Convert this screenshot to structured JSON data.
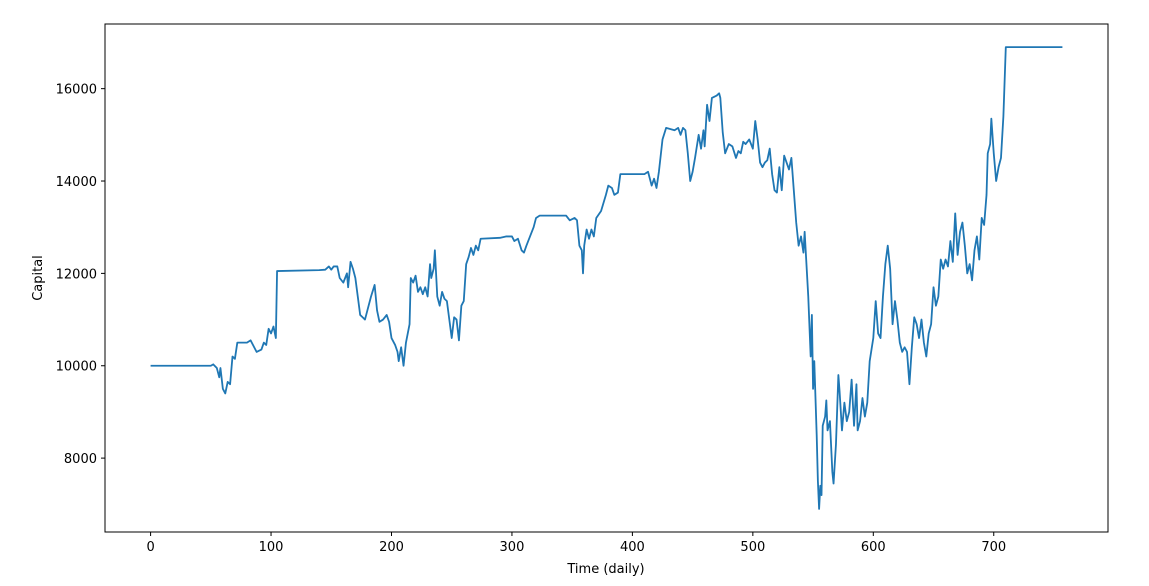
{
  "chart_data": {
    "type": "line",
    "xlabel": "Time (daily)",
    "ylabel": "Capital",
    "color": "#1f77b4",
    "xlim": [
      -37.85,
      794.85
    ],
    "ylim": [
      6400,
      17400
    ],
    "xticks": [
      0,
      100,
      200,
      300,
      400,
      500,
      600,
      700
    ],
    "yticks": [
      8000,
      10000,
      12000,
      14000,
      16000
    ],
    "x": [
      0,
      50,
      52,
      55,
      57,
      58,
      60,
      62,
      64,
      66,
      68,
      70,
      72,
      80,
      83,
      86,
      88,
      92,
      94,
      96,
      98,
      100,
      102,
      104,
      105,
      140,
      145,
      148,
      150,
      152,
      155,
      157,
      160,
      163,
      164,
      166,
      168,
      170,
      172,
      174,
      176,
      178,
      180,
      183,
      186,
      188,
      190,
      193,
      196,
      198,
      200,
      203,
      205,
      206,
      208,
      210,
      212,
      215,
      216,
      218,
      220,
      222,
      224,
      226,
      228,
      230,
      232,
      233,
      235,
      236,
      238,
      240,
      242,
      244,
      246,
      248,
      250,
      252,
      254,
      256,
      258,
      260,
      262,
      264,
      266,
      268,
      270,
      272,
      274,
      290,
      295,
      300,
      302,
      305,
      308,
      310,
      312,
      315,
      318,
      320,
      323,
      345,
      348,
      352,
      354,
      356,
      358,
      359,
      360,
      362,
      364,
      366,
      368,
      370,
      374,
      378,
      380,
      383,
      385,
      388,
      390,
      405,
      410,
      413,
      416,
      418,
      420,
      422,
      425,
      428,
      435,
      438,
      440,
      442,
      444,
      446,
      448,
      450,
      452,
      455,
      457,
      459,
      460,
      462,
      464,
      466,
      470,
      472,
      473,
      475,
      477,
      480,
      483,
      486,
      488,
      490,
      492,
      494,
      497,
      500,
      502,
      504,
      506,
      508,
      510,
      512,
      514,
      516,
      518,
      520,
      522,
      524,
      526,
      528,
      530,
      532,
      534,
      536,
      538,
      540,
      542,
      543,
      546,
      548,
      549,
      550,
      551,
      553,
      554,
      555,
      556,
      557,
      558,
      560,
      561,
      562,
      564,
      566,
      567,
      569,
      571,
      572,
      574,
      576,
      578,
      580,
      582,
      584,
      586,
      587,
      589,
      591,
      593,
      595,
      597,
      600,
      602,
      604,
      606,
      608,
      610,
      612,
      614,
      616,
      618,
      620,
      622,
      624,
      626,
      628,
      630,
      632,
      634,
      636,
      638,
      640,
      642,
      644,
      646,
      648,
      650,
      652,
      654,
      656,
      658,
      660,
      662,
      664,
      666,
      668,
      670,
      672,
      674,
      676,
      678,
      680,
      682,
      684,
      686,
      688,
      690,
      692,
      694,
      695,
      697,
      698,
      700,
      702,
      704,
      706,
      708,
      710,
      757
    ],
    "values": [
      10000,
      10000,
      10030,
      9950,
      9750,
      9950,
      9500,
      9400,
      9650,
      9600,
      10200,
      10150,
      10500,
      10500,
      10550,
      10400,
      10300,
      10350,
      10500,
      10450,
      10800,
      10700,
      10850,
      10600,
      12050,
      12070,
      12080,
      12150,
      12080,
      12150,
      12150,
      11900,
      11800,
      12000,
      11700,
      12250,
      12100,
      11900,
      11500,
      11100,
      11050,
      11000,
      11200,
      11500,
      11750,
      11200,
      10950,
      11000,
      11100,
      10950,
      10600,
      10450,
      10300,
      10100,
      10400,
      10000,
      10500,
      10900,
      11900,
      11800,
      11950,
      11600,
      11700,
      11550,
      11700,
      11500,
      12200,
      11900,
      12100,
      12500,
      11500,
      11300,
      11600,
      11450,
      11400,
      11000,
      10600,
      11050,
      11000,
      10550,
      11300,
      11400,
      12200,
      12350,
      12550,
      12400,
      12600,
      12500,
      12750,
      12770,
      12800,
      12800,
      12700,
      12750,
      12500,
      12450,
      12600,
      12800,
      13000,
      13200,
      13250,
      13250,
      13150,
      13200,
      13150,
      12600,
      12500,
      12000,
      12600,
      12950,
      12750,
      12950,
      12800,
      13200,
      13350,
      13700,
      13900,
      13850,
      13700,
      13750,
      14150,
      14150,
      14150,
      14200,
      13900,
      14050,
      13850,
      14200,
      14900,
      15150,
      15100,
      15150,
      15000,
      15150,
      15100,
      14600,
      14000,
      14200,
      14500,
      15000,
      14700,
      15100,
      14750,
      15650,
      15300,
      15800,
      15850,
      15900,
      15800,
      15050,
      14600,
      14800,
      14750,
      14500,
      14650,
      14600,
      14850,
      14800,
      14900,
      14700,
      15300,
      14900,
      14400,
      14300,
      14400,
      14450,
      14700,
      14150,
      13800,
      13750,
      14300,
      13800,
      14550,
      14400,
      14250,
      14500,
      13800,
      13100,
      12600,
      12800,
      12450,
      12900,
      11500,
      10200,
      11100,
      9500,
      10100,
      8500,
      7500,
      6900,
      7400,
      7200,
      8700,
      8900,
      9250,
      8600,
      8800,
      7700,
      7450,
      8300,
      9800,
      9450,
      8600,
      9200,
      8800,
      9000,
      9700,
      8700,
      9600,
      8600,
      8800,
      9300,
      8900,
      9200,
      10100,
      10600,
      11400,
      10700,
      10600,
      11500,
      12200,
      12600,
      12100,
      10900,
      11400,
      11000,
      10500,
      10300,
      10400,
      10300,
      9600,
      10400,
      11050,
      10900,
      10600,
      11000,
      10500,
      10200,
      10700,
      10900,
      11700,
      11300,
      11500,
      12300,
      12100,
      12300,
      12150,
      12700,
      12250,
      13300,
      12400,
      12900,
      13100,
      12600,
      12000,
      12200,
      11850,
      12500,
      12800,
      12300,
      13200,
      13050,
      13700,
      14600,
      14800,
      15350,
      14600,
      14000,
      14300,
      14500,
      15400,
      16900,
      16900
    ]
  }
}
